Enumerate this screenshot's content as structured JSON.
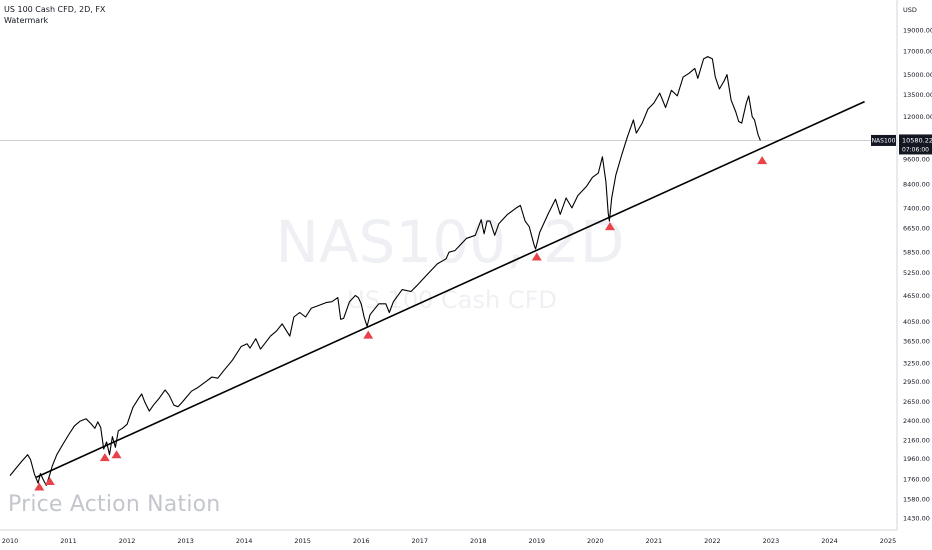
{
  "header": {
    "symbol_line": "US 100 Cash CFD, 2D, FX",
    "indicator_label": "Watermark"
  },
  "watermark": {
    "big": "NAS100, 2D",
    "small": "US 100 Cash CFD"
  },
  "branding": "Price Action Nation",
  "price_label": {
    "symbol": "NAS100",
    "price": "10580.22",
    "countdown": "07:06:00"
  },
  "colors": {
    "price_line": "#000000",
    "marker": "#e8434a",
    "trendline": "#000000",
    "axis_text": "#131722"
  },
  "chart_data": {
    "type": "line",
    "title": "US 100 Cash CFD, 2D, FX",
    "currency": "USD",
    "y_scale": "log",
    "xlim": [
      2010.0,
      2025.0
    ],
    "ylim": [
      1340,
      22000
    ],
    "x_ticks": [
      "2010",
      "2011",
      "2012",
      "2013",
      "2014",
      "2015",
      "2016",
      "2017",
      "2018",
      "2019",
      "2020",
      "2021",
      "2022",
      "2023",
      "2024",
      "2025"
    ],
    "y_ticks": [
      19000,
      17000,
      15000,
      13500,
      12000,
      9600,
      8400,
      7400,
      6650,
      5850,
      5250,
      4650,
      4050,
      3650,
      3250,
      2950,
      2650,
      2400,
      2160,
      1960,
      1760,
      1580,
      1430
    ],
    "y_tick_labels": [
      "19000.00",
      "17000.00",
      "15000.00",
      "13500.00",
      "12000.00",
      "9600.00",
      "8400.00",
      "7400.00",
      "6650.00",
      "5850.00",
      "5250.00",
      "4650.00",
      "4050.00",
      "3650.00",
      "3250.00",
      "2950.00",
      "2650.00",
      "2400.00",
      "2160.00",
      "1960.00",
      "1760.00",
      "1580.00",
      "1430.00"
    ],
    "current_price": 10580.22,
    "series": [
      {
        "points": [
          [
            2010.0,
            1790
          ],
          [
            2010.1,
            1860
          ],
          [
            2010.2,
            1930
          ],
          [
            2010.3,
            2000
          ],
          [
            2010.35,
            1950
          ],
          [
            2010.42,
            1800
          ],
          [
            2010.48,
            1720
          ],
          [
            2010.52,
            1810
          ],
          [
            2010.58,
            1740
          ],
          [
            2010.62,
            1700
          ],
          [
            2010.68,
            1800
          ],
          [
            2010.72,
            1880
          ],
          [
            2010.8,
            2000
          ],
          [
            2010.9,
            2110
          ],
          [
            2011.0,
            2220
          ],
          [
            2011.1,
            2330
          ],
          [
            2011.2,
            2390
          ],
          [
            2011.3,
            2420
          ],
          [
            2011.38,
            2360
          ],
          [
            2011.45,
            2300
          ],
          [
            2011.5,
            2380
          ],
          [
            2011.55,
            2310
          ],
          [
            2011.6,
            2060
          ],
          [
            2011.65,
            2140
          ],
          [
            2011.7,
            2000
          ],
          [
            2011.75,
            2200
          ],
          [
            2011.8,
            2080
          ],
          [
            2011.85,
            2270
          ],
          [
            2011.92,
            2300
          ],
          [
            2012.0,
            2350
          ],
          [
            2012.1,
            2570
          ],
          [
            2012.2,
            2700
          ],
          [
            2012.25,
            2760
          ],
          [
            2012.3,
            2650
          ],
          [
            2012.38,
            2520
          ],
          [
            2012.45,
            2600
          ],
          [
            2012.55,
            2700
          ],
          [
            2012.65,
            2820
          ],
          [
            2012.72,
            2740
          ],
          [
            2012.8,
            2600
          ],
          [
            2012.87,
            2580
          ],
          [
            2012.95,
            2650
          ],
          [
            2013.0,
            2700
          ],
          [
            2013.1,
            2800
          ],
          [
            2013.2,
            2850
          ],
          [
            2013.35,
            2950
          ],
          [
            2013.45,
            3020
          ],
          [
            2013.55,
            3000
          ],
          [
            2013.65,
            3120
          ],
          [
            2013.8,
            3300
          ],
          [
            2013.95,
            3550
          ],
          [
            2014.05,
            3600
          ],
          [
            2014.1,
            3520
          ],
          [
            2014.2,
            3700
          ],
          [
            2014.28,
            3500
          ],
          [
            2014.35,
            3600
          ],
          [
            2014.45,
            3750
          ],
          [
            2014.55,
            3850
          ],
          [
            2014.65,
            4000
          ],
          [
            2014.78,
            3750
          ],
          [
            2014.85,
            4150
          ],
          [
            2014.95,
            4250
          ],
          [
            2015.05,
            4150
          ],
          [
            2015.15,
            4350
          ],
          [
            2015.25,
            4400
          ],
          [
            2015.4,
            4480
          ],
          [
            2015.5,
            4500
          ],
          [
            2015.6,
            4600
          ],
          [
            2015.65,
            4100
          ],
          [
            2015.7,
            4120
          ],
          [
            2015.8,
            4500
          ],
          [
            2015.9,
            4650
          ],
          [
            2015.95,
            4600
          ],
          [
            2016.0,
            4450
          ],
          [
            2016.05,
            4150
          ],
          [
            2016.1,
            3950
          ],
          [
            2016.15,
            4200
          ],
          [
            2016.3,
            4450
          ],
          [
            2016.42,
            4450
          ],
          [
            2016.48,
            4250
          ],
          [
            2016.55,
            4500
          ],
          [
            2016.7,
            4800
          ],
          [
            2016.85,
            4750
          ],
          [
            2016.95,
            4900
          ],
          [
            2017.1,
            5150
          ],
          [
            2017.3,
            5500
          ],
          [
            2017.45,
            5650
          ],
          [
            2017.5,
            5850
          ],
          [
            2017.6,
            5900
          ],
          [
            2017.8,
            6300
          ],
          [
            2017.95,
            6400
          ],
          [
            2018.05,
            6950
          ],
          [
            2018.1,
            6450
          ],
          [
            2018.15,
            6900
          ],
          [
            2018.2,
            6900
          ],
          [
            2018.28,
            6400
          ],
          [
            2018.35,
            6800
          ],
          [
            2018.5,
            7150
          ],
          [
            2018.65,
            7400
          ],
          [
            2018.72,
            7500
          ],
          [
            2018.8,
            6900
          ],
          [
            2018.87,
            6700
          ],
          [
            2018.95,
            6100
          ],
          [
            2018.98,
            5950
          ],
          [
            2019.05,
            6500
          ],
          [
            2019.2,
            7200
          ],
          [
            2019.32,
            7750
          ],
          [
            2019.4,
            7150
          ],
          [
            2019.5,
            7800
          ],
          [
            2019.6,
            7400
          ],
          [
            2019.7,
            7900
          ],
          [
            2019.85,
            8300
          ],
          [
            2019.95,
            8700
          ],
          [
            2020.05,
            8900
          ],
          [
            2020.12,
            9700
          ],
          [
            2020.18,
            8500
          ],
          [
            2020.22,
            7200
          ],
          [
            2020.24,
            6900
          ],
          [
            2020.28,
            7800
          ],
          [
            2020.35,
            8800
          ],
          [
            2020.45,
            9800
          ],
          [
            2020.55,
            10800
          ],
          [
            2020.65,
            11800
          ],
          [
            2020.7,
            11000
          ],
          [
            2020.8,
            11600
          ],
          [
            2020.9,
            12500
          ],
          [
            2021.0,
            12900
          ],
          [
            2021.1,
            13600
          ],
          [
            2021.2,
            12600
          ],
          [
            2021.3,
            13800
          ],
          [
            2021.4,
            13400
          ],
          [
            2021.5,
            14800
          ],
          [
            2021.6,
            15100
          ],
          [
            2021.7,
            15500
          ],
          [
            2021.75,
            14700
          ],
          [
            2021.85,
            16300
          ],
          [
            2021.92,
            16500
          ],
          [
            2022.0,
            16300
          ],
          [
            2022.05,
            14800
          ],
          [
            2022.12,
            13900
          ],
          [
            2022.2,
            14500
          ],
          [
            2022.25,
            15000
          ],
          [
            2022.32,
            13100
          ],
          [
            2022.4,
            12300
          ],
          [
            2022.45,
            11700
          ],
          [
            2022.5,
            11600
          ],
          [
            2022.58,
            12900
          ],
          [
            2022.62,
            13400
          ],
          [
            2022.68,
            12000
          ],
          [
            2022.72,
            11800
          ],
          [
            2022.78,
            10900
          ],
          [
            2022.82,
            10580
          ]
        ]
      }
    ],
    "trendline": {
      "start": [
        2010.45,
        1775
      ],
      "end": [
        2024.6,
        13000
      ]
    },
    "markers": [
      [
        2010.5,
        1690
      ],
      [
        2010.68,
        1740
      ],
      [
        2011.62,
        1975
      ],
      [
        2011.82,
        2005
      ],
      [
        2016.12,
        3780
      ],
      [
        2019.0,
        5720
      ],
      [
        2020.25,
        6720
      ],
      [
        2022.85,
        9530
      ]
    ]
  }
}
